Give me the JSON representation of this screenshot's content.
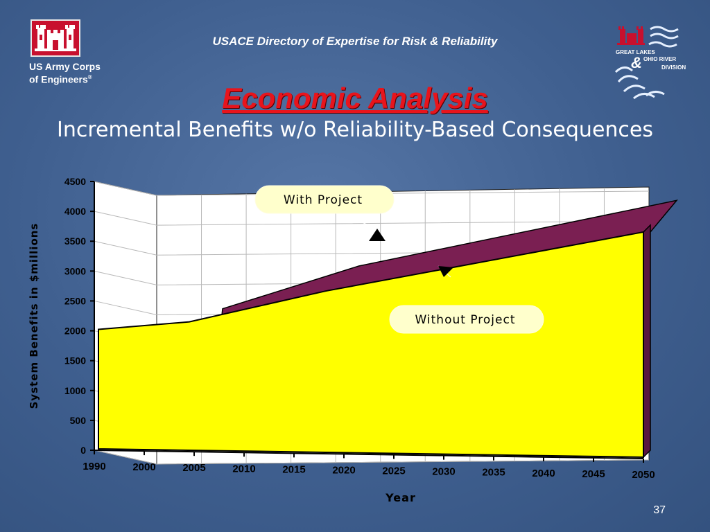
{
  "header": {
    "title": "USACE Directory of Expertise for Risk & Reliability",
    "org_line1": "US Army Corps",
    "org_line2": "of Engineers",
    "registered_mark": "®"
  },
  "slide": {
    "title": "Economic Analysis",
    "subtitle": "Incremental Benefits w/o Reliability-Based Consequences",
    "page_number": "37"
  },
  "colors": {
    "with_project": "#7a1f52",
    "without_project": "#ffff00",
    "title_red": "#e8141c",
    "background": "#3f5f8f",
    "logo_red": "#c8102e"
  },
  "logos": {
    "left": "usace-castle-icon",
    "right": "great-lakes-ohio-river-division-icon",
    "right_text": [
      "GREAT LAKES",
      "&",
      "OHIO RIVER",
      "DIVISION"
    ]
  },
  "chart_data": {
    "type": "area",
    "title": "",
    "xlabel": "Year",
    "ylabel": "System Benefits in $millions",
    "x_ticks": [
      "1990",
      "2000",
      "2005",
      "2010",
      "2015",
      "2020",
      "2025",
      "2030",
      "2035",
      "2040",
      "2045",
      "2050"
    ],
    "y_ticks": [
      0,
      500,
      1000,
      1500,
      2000,
      2500,
      3000,
      3500,
      4000,
      4500
    ],
    "ylim": [
      0,
      4500
    ],
    "grid": true,
    "projection": "3d",
    "series": [
      {
        "name": "With Project",
        "x": [
          2000,
          2015,
          2050
        ],
        "values": [
          2300,
          3050,
          4230
        ]
      },
      {
        "name": "Without Project",
        "x": [
          1990,
          2000,
          2015,
          2050
        ],
        "values": [
          2000,
          2150,
          2700,
          3770
        ]
      }
    ],
    "annotations": [
      {
        "text": "With Project",
        "target": "With Project"
      },
      {
        "text": "Without Project",
        "target": "Without Project"
      }
    ]
  }
}
